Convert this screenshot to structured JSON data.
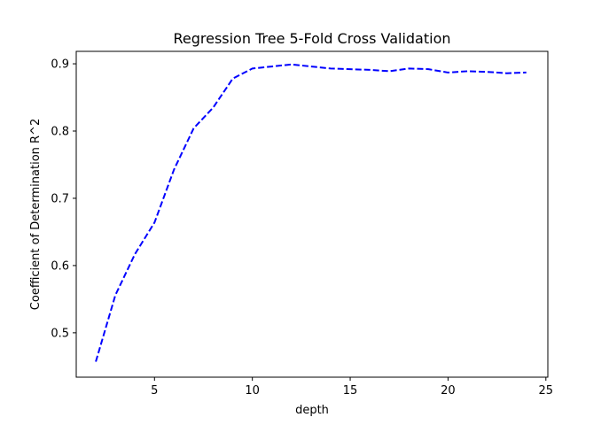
{
  "chart_data": {
    "type": "line",
    "title": "Regression Tree 5-Fold Cross Validation",
    "xlabel": "depth",
    "ylabel": "Coefficient of Determination R^2",
    "xlim": [
      1.0,
      25.1
    ],
    "ylim": [
      0.434,
      0.9185
    ],
    "xticks": [
      5,
      10,
      15,
      20,
      25
    ],
    "yticks": [
      0.5,
      0.6,
      0.7,
      0.8,
      0.9
    ],
    "ytick_labels": [
      "0.5",
      "0.6",
      "0.7",
      "0.8",
      "0.9"
    ],
    "grid": false,
    "line_style": "dashed",
    "line_color": "#0000ff",
    "series": [
      {
        "x": [
          2,
          3,
          4,
          5,
          6,
          7,
          8,
          9,
          10,
          11,
          12,
          13,
          14,
          15,
          16,
          17,
          18,
          19,
          20,
          21,
          22,
          23,
          24
        ],
        "values": [
          0.457,
          0.556,
          0.617,
          0.664,
          0.743,
          0.804,
          0.835,
          0.878,
          0.893,
          0.896,
          0.899,
          0.896,
          0.893,
          0.892,
          0.891,
          0.889,
          0.893,
          0.892,
          0.887,
          0.889,
          0.888,
          0.886,
          0.887
        ]
      }
    ]
  }
}
